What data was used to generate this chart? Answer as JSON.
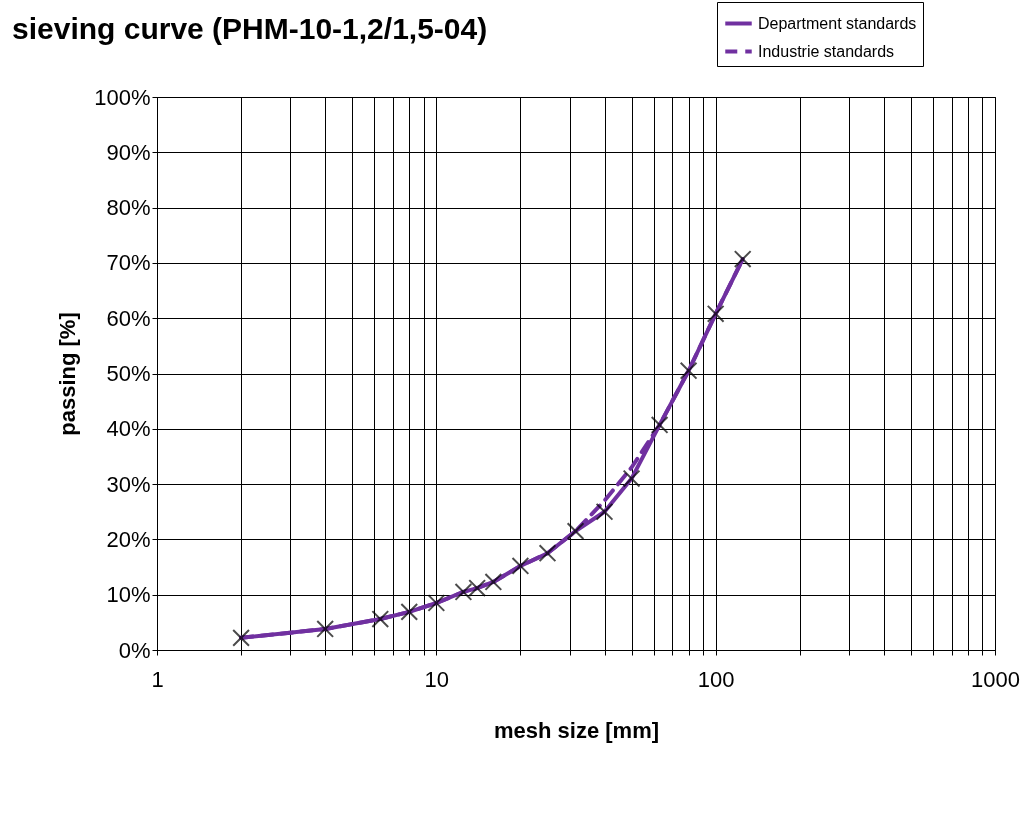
{
  "chart_data": {
    "type": "line",
    "title": "sieving curve (PHM-10-1,2/1,5-04)",
    "xlabel": "mesh size  [mm]",
    "ylabel": "passing  [%]",
    "x": [
      2,
      4,
      6.3,
      8,
      10,
      12.5,
      14,
      16,
      20,
      25,
      31.5,
      40,
      50,
      63,
      80,
      100,
      125
    ],
    "series": [
      {
        "name": "Department standards",
        "color": "#7030a0",
        "line_style": "solid",
        "marker": "cross",
        "values": [
          2.2,
          3.8,
          5.6,
          6.9,
          8.5,
          10.5,
          11.2,
          12.3,
          15.2,
          17.5,
          21.5,
          25,
          31,
          40.7,
          50.5,
          60.8,
          70.7
        ]
      },
      {
        "name": "Industrie standards",
        "color": "#7030a0",
        "line_style": "dashed",
        "marker": "none",
        "values": [
          2.2,
          3.8,
          5.6,
          6.9,
          8.5,
          10.5,
          11.2,
          12.3,
          15.2,
          17.5,
          21.5,
          27,
          33,
          40.7,
          50.5,
          60.8,
          70.7
        ]
      }
    ],
    "log": "x",
    "xlim": [
      1,
      1000
    ],
    "xticks": [
      1,
      {
        "value": 2,
        "label": null
      },
      {
        "value": 3,
        "label": null
      },
      {
        "value": 4,
        "label": null
      },
      {
        "value": 5,
        "label": null
      },
      {
        "value": 6,
        "label": null
      },
      {
        "value": 7,
        "label": null
      },
      {
        "value": 8,
        "label": null
      },
      {
        "value": 9,
        "label": null
      },
      10,
      {
        "value": 20,
        "label": null
      },
      {
        "value": 30,
        "label": null
      },
      {
        "value": 40,
        "label": null
      },
      {
        "value": 50,
        "label": null
      },
      {
        "value": 60,
        "label": null
      },
      {
        "value": 70,
        "label": null
      },
      {
        "value": 80,
        "label": null
      },
      {
        "value": 90,
        "label": null
      },
      100,
      {
        "value": 200,
        "label": null
      },
      {
        "value": 300,
        "label": null
      },
      {
        "value": 400,
        "label": null
      },
      {
        "value": 500,
        "label": null
      },
      {
        "value": 600,
        "label": null
      },
      {
        "value": 700,
        "label": null
      },
      {
        "value": 800,
        "label": null
      },
      {
        "value": 900,
        "label": null
      },
      1000
    ],
    "ylim": [
      0,
      100
    ],
    "yticks": [
      {
        "value": 0,
        "label": "0%"
      },
      {
        "value": 10,
        "label": "10%"
      },
      {
        "value": 20,
        "label": "20%"
      },
      {
        "value": 30,
        "label": "30%"
      },
      {
        "value": 40,
        "label": "40%"
      },
      {
        "value": 50,
        "label": "50%"
      },
      {
        "value": 60,
        "label": "60%"
      },
      {
        "value": 70,
        "label": "70%"
      },
      {
        "value": 80,
        "label": "80%"
      },
      {
        "value": 90,
        "label": "90%"
      },
      {
        "value": 100,
        "label": "100%"
      }
    ],
    "grid": true,
    "legend": "top right"
  }
}
